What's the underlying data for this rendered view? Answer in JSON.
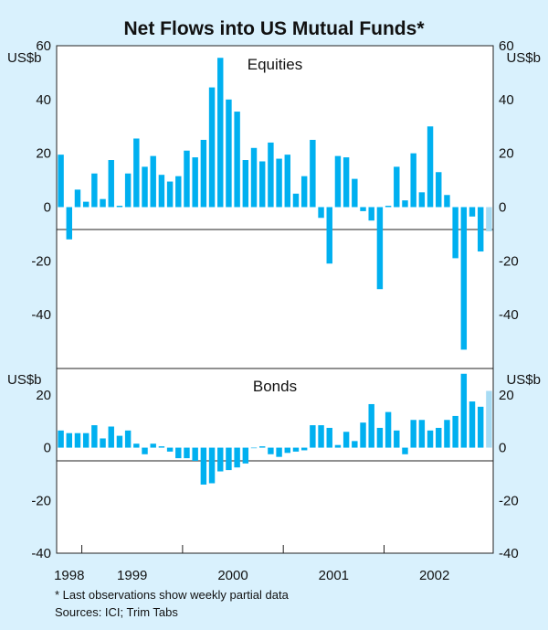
{
  "chart_data": {
    "type": "bar",
    "title": "Net Flows into US Mutual Funds*",
    "ylabel_left": "US$b",
    "ylabel_right": "US$b",
    "x_ticks": [
      "1998",
      "1999",
      "2000",
      "2001",
      "2002"
    ],
    "colors": {
      "actual": "#00b0f0",
      "partial": "#a8dcf4",
      "background": "#d9f1fd",
      "panel": "#ffffff"
    },
    "panels": [
      {
        "name": "Equities",
        "ylim": [
          -60,
          60
        ],
        "y_ticks": [
          60,
          40,
          20,
          0,
          -20,
          -40
        ],
        "values": [
          19.5,
          -12,
          6.5,
          2,
          12.5,
          3,
          17.5,
          0.5,
          12.5,
          25.5,
          15,
          19,
          12,
          9.5,
          11.5,
          21,
          18.5,
          25,
          44.5,
          55.5,
          40,
          35.5,
          17.5,
          22,
          17,
          24,
          18,
          19.5,
          5,
          11.5,
          25,
          -4,
          -21,
          19,
          18.5,
          10.5,
          -1.5,
          -5,
          -30.5,
          0.5,
          15,
          2.5,
          20,
          5.5,
          30,
          13,
          4.5,
          -19,
          -53,
          -3.5,
          -16.5,
          -9
        ],
        "partial_last": true
      },
      {
        "name": "Bonds",
        "ylim": [
          -40,
          30
        ],
        "y_ticks": [
          20,
          0,
          -20,
          -40
        ],
        "values": [
          6.5,
          5.5,
          5.5,
          5.5,
          8.5,
          3.5,
          8,
          4.5,
          6.5,
          1.5,
          -2.5,
          1.5,
          0.5,
          -1.5,
          -4,
          -4,
          -5,
          -14,
          -13.5,
          -9,
          -8.5,
          -7.5,
          -6,
          0,
          0.5,
          -2.5,
          -3.5,
          -2,
          -1.5,
          -1,
          8.5,
          8.5,
          7.5,
          1,
          6,
          2.5,
          9.5,
          16.5,
          7.5,
          13.5,
          6.5,
          -2.5,
          10.5,
          10.5,
          6.5,
          7.5,
          10.5,
          12,
          28,
          17.5,
          15.5,
          21.5
        ],
        "partial_last": true
      }
    ]
  },
  "footnote": "*     Last observations show weekly partial data",
  "sources": "Sources: ICI; Trim Tabs"
}
